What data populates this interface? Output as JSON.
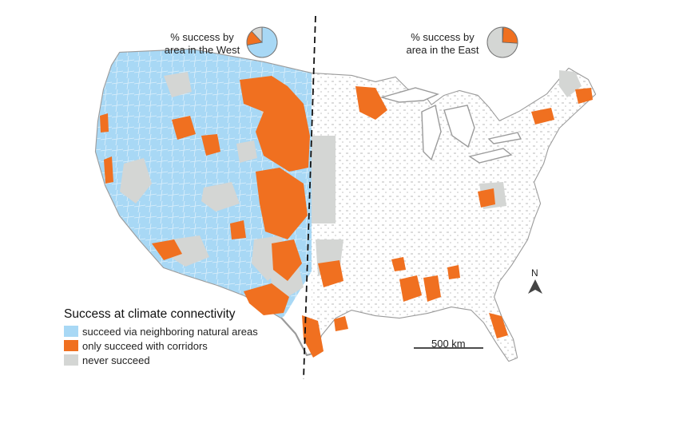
{
  "colors": {
    "succeed_natural": "#a8d8f5",
    "corridors": "#f07020",
    "never": "#d4d6d4",
    "land": "#ffffff",
    "outline": "#9b9b9b"
  },
  "pies": [
    {
      "id": "west",
      "label_lines": [
        "% success by",
        "area in the West"
      ],
      "fractions": {
        "succeed_natural": 0.72,
        "corridors": 0.16,
        "never": 0.12
      }
    },
    {
      "id": "east",
      "label_lines": [
        "% success by",
        "area in the East"
      ],
      "fractions": {
        "succeed_natural": 0.01,
        "corridors": 0.25,
        "never": 0.74
      }
    }
  ],
  "legend": {
    "title": "Success at climate connectivity",
    "items": [
      {
        "key": "succeed_natural",
        "label": "succeed via neighboring natural areas"
      },
      {
        "key": "corridors",
        "label": "only succeed with corridors"
      },
      {
        "key": "never",
        "label": "never succeed"
      }
    ]
  },
  "scale_bar": {
    "label": "500 km"
  },
  "north_arrow": {
    "label": "N"
  }
}
